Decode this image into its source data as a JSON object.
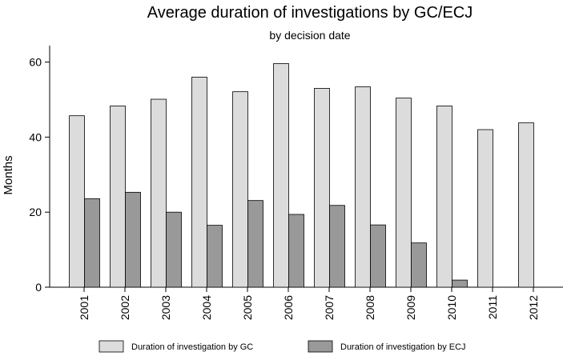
{
  "chart_data": {
    "type": "bar",
    "title": "Average duration of investigations by GC/ECJ",
    "subtitle": "by decision date",
    "xlabel": "",
    "ylabel": "Months",
    "ylim": [
      0,
      63
    ],
    "yticks": [
      0,
      20,
      40,
      60
    ],
    "grid": false,
    "legend_position": "bottom",
    "categories": [
      "2001",
      "2002",
      "2003",
      "2004",
      "2005",
      "2006",
      "2007",
      "2008",
      "2009",
      "2010",
      "2011",
      "2012"
    ],
    "series": [
      {
        "name": "Duration of investigation by GC",
        "color": "#dcdcdc",
        "values": [
          45.7,
          48.3,
          50.1,
          56.0,
          52.1,
          59.6,
          53.0,
          53.4,
          50.4,
          48.3,
          42.0,
          43.8
        ]
      },
      {
        "name": "Duration of investigation by ECJ",
        "color": "#999999",
        "values": [
          23.6,
          25.3,
          20.0,
          16.5,
          23.1,
          19.4,
          21.8,
          16.6,
          11.8,
          1.9,
          null,
          null
        ]
      }
    ]
  }
}
